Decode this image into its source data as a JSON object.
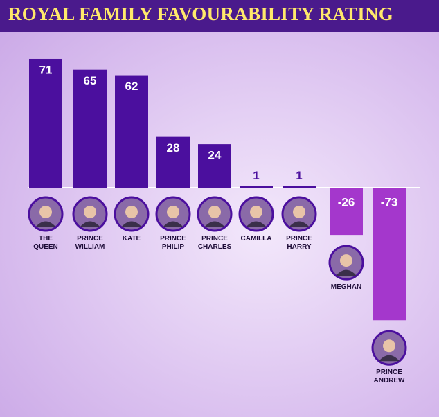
{
  "chart_data": {
    "type": "bar",
    "title": "ROYAL FAMILY FAVOURABILITY RATING",
    "categories": [
      "THE\nQUEEN",
      "PRINCE\nWILLIAM",
      "KATE",
      "PRINCE\nPHILIP",
      "PRINCE\nCHARLES",
      "CAMILLA",
      "PRINCE\nHARRY",
      "MEGHAN",
      "PRINCE\nANDREW"
    ],
    "values": [
      71,
      65,
      62,
      28,
      24,
      1,
      1,
      -26,
      -73
    ],
    "color": "#4b0f9e",
    "negative_color": "#a437cc"
  }
}
